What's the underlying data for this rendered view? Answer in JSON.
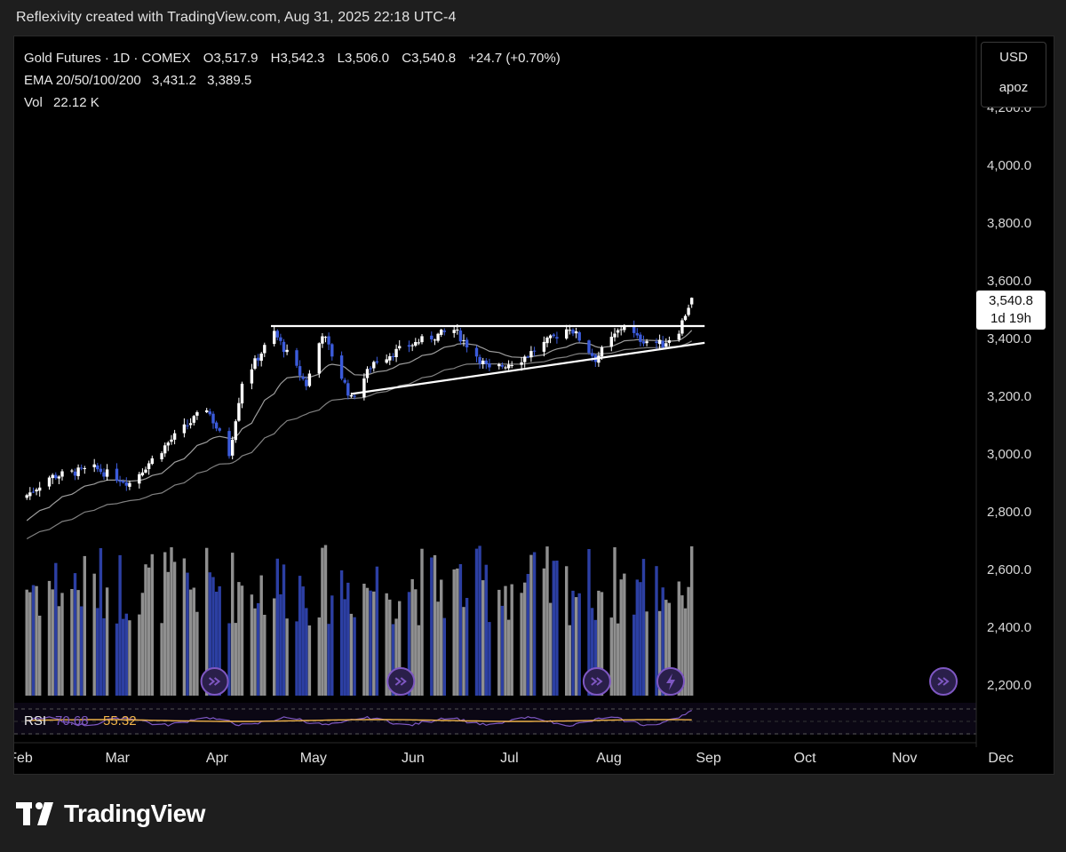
{
  "header": {
    "caption": "Reflexivity created with TradingView.com, Aug 31, 2025 22:18 UTC-4"
  },
  "legend": {
    "title": "Gold Futures · 1D · COMEX",
    "open": "O3,517.9",
    "high": "H3,542.3",
    "low": "L3,506.0",
    "close": "C3,540.8",
    "change": "+24.7 (+0.70%)",
    "ema_label": "EMA 20/50/100/200",
    "ema_value_1": "3,431.2",
    "ema_value_2": "3,389.5",
    "vol_label": "Vol",
    "vol_value": "22.12 K"
  },
  "currency_menu": {
    "currency": "USD",
    "user": "apoz"
  },
  "last_price": {
    "price": "3,540.8",
    "countdown": "1d 19h"
  },
  "rsi": {
    "label": "RSI",
    "value1": "70.68",
    "value2": "55.32"
  },
  "brand": {
    "name": "TradingView"
  },
  "colors": {
    "background": "#000000",
    "up_candle": "#ffffff",
    "down_candle": "#3b5bdb",
    "volume_up": "#8f8f8f",
    "volume_down": "#2c3fa3",
    "ema": "#b8b8b8",
    "rsi_line": "#7e57c2",
    "rsi_ma": "#f0b34a",
    "marker": "#7e57c2"
  },
  "chart_data": {
    "type": "candlestick",
    "title": "Gold Futures · 1D · COMEX",
    "y_axis": {
      "ticks": [
        "2,200.0",
        "2,400.0",
        "2,600.0",
        "2,800.0",
        "3,000.0",
        "3,200.0",
        "3,400.0",
        "3,600.0",
        "3,800.0",
        "4,000.0",
        "4,200.0"
      ]
    },
    "x_axis": {
      "ticks": [
        "Feb",
        "Mar",
        "Apr",
        "May",
        "Jun",
        "Jul",
        "Aug",
        "Sep",
        "Oct",
        "Nov",
        "Dec"
      ]
    },
    "price_anchors": [
      {
        "date": "2025-02-01",
        "close": 2840
      },
      {
        "date": "2025-02-10",
        "close": 2920
      },
      {
        "date": "2025-02-24",
        "close": 2950
      },
      {
        "date": "2025-03-07",
        "close": 2900
      },
      {
        "date": "2025-03-20",
        "close": 3050
      },
      {
        "date": "2025-03-31",
        "close": 3160
      },
      {
        "date": "2025-04-07",
        "close": 3000
      },
      {
        "date": "2025-04-11",
        "close": 3250
      },
      {
        "date": "2025-04-21",
        "close": 3420
      },
      {
        "date": "2025-05-01",
        "close": 3240
      },
      {
        "date": "2025-05-06",
        "close": 3420
      },
      {
        "date": "2025-05-15",
        "close": 3190
      },
      {
        "date": "2025-05-22",
        "close": 3320
      },
      {
        "date": "2025-06-05",
        "close": 3390
      },
      {
        "date": "2025-06-16",
        "close": 3430
      },
      {
        "date": "2025-06-27",
        "close": 3290
      },
      {
        "date": "2025-07-07",
        "close": 3330
      },
      {
        "date": "2025-07-22",
        "close": 3440
      },
      {
        "date": "2025-07-30",
        "close": 3330
      },
      {
        "date": "2025-08-08",
        "close": 3450
      },
      {
        "date": "2025-08-12",
        "close": 3400
      },
      {
        "date": "2025-08-20",
        "close": 3380
      },
      {
        "date": "2025-08-25",
        "close": 3430
      },
      {
        "date": "2025-08-29",
        "close": 3540.8
      }
    ],
    "last_bar": {
      "date": "2025-08-29",
      "open": 3517.9,
      "high": 3542.3,
      "low": 3506.0,
      "close": 3540.8
    },
    "ema": [
      {
        "period": 20,
        "last": 3431.2
      },
      {
        "period": 50,
        "last": 3389.5
      }
    ],
    "trendlines": [
      {
        "name": "resistance",
        "from": {
          "date": "2025-04-20",
          "price": 3443
        },
        "to": {
          "date": "2025-09-02",
          "price": 3443
        }
      },
      {
        "name": "support",
        "from": {
          "date": "2025-05-15",
          "price": 3208
        },
        "to": {
          "date": "2025-09-02",
          "price": 3385
        }
      }
    ],
    "rsi_last": [
      70.68,
      55.32
    ]
  }
}
